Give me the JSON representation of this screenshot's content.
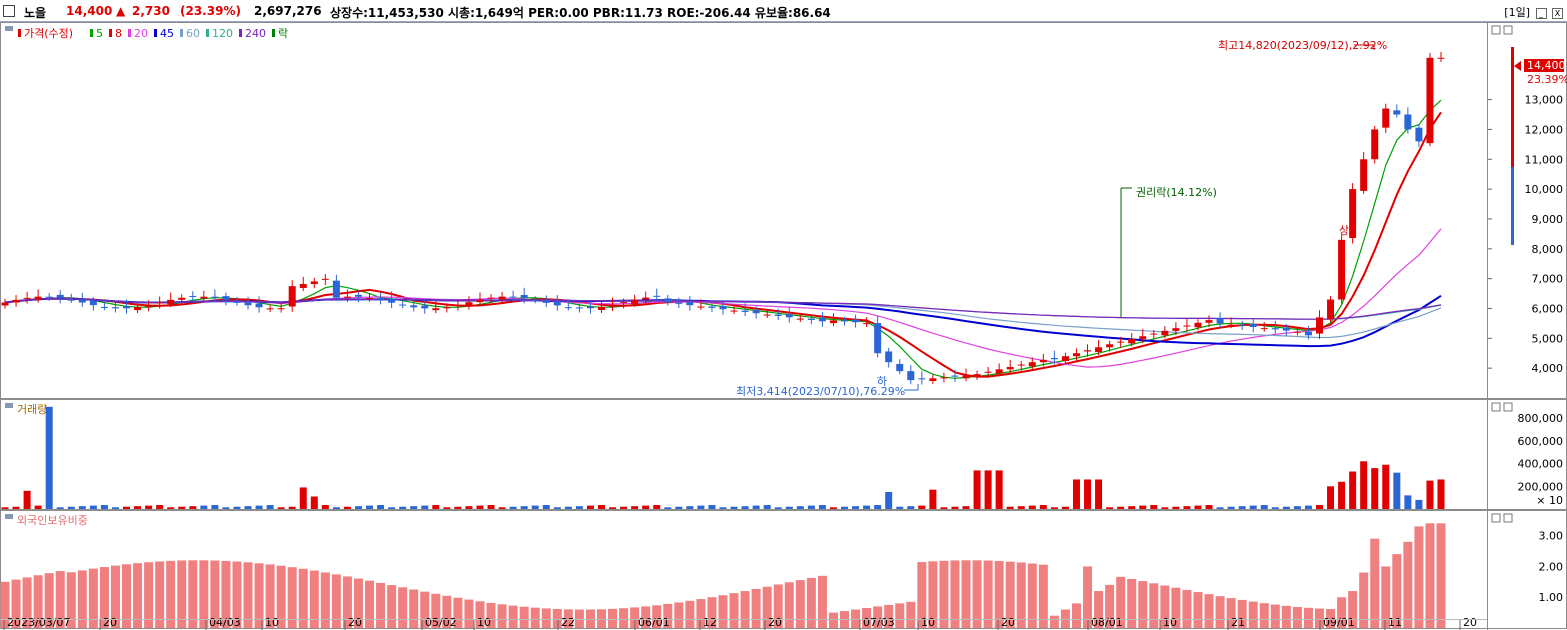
{
  "header": {
    "name": "노을",
    "price": "14,400",
    "change_arrow": "▲",
    "change": "2,730",
    "change_pct": "(23.39%)",
    "volume": "2,697,276",
    "stats": "상장수:11,453,530 시총:1,649억 PER:0.00 PBR:11.73 ROE:-206.44 유보율:86.64",
    "period": "[1일]",
    "min_btn": "_",
    "close_btn": "X"
  },
  "panels": {
    "price_legend": [
      {
        "label": "가격(수정)",
        "color": "#e00000"
      },
      {
        "label": "5",
        "color": "#00a000"
      },
      {
        "label": "8",
        "color": "#e00000"
      },
      {
        "label": "20",
        "color": "#e040e0"
      },
      {
        "label": "45",
        "color": "#0000d0"
      },
      {
        "label": "60",
        "color": "#7aa0c8"
      },
      {
        "label": "120",
        "color": "#30b090"
      },
      {
        "label": "240",
        "color": "#8020c0"
      },
      {
        "label": "락",
        "color": "#008000"
      }
    ],
    "volume_title": "거래량",
    "foreign_title": "외국인보유비중"
  },
  "annotations": {
    "high": "최고14,820(2023/09/12),2.92%",
    "low": "최저3,414(2023/07/10),76.29%",
    "rights": "권리락(14.12%)",
    "up_mark": "상",
    "down_mark": "하",
    "last_price": "14,400",
    "last_pct": "23.39%"
  },
  "chart_data": [
    {
      "type": "candlestick",
      "title": "가격(수정)",
      "ylim": [
        3000,
        15600
      ],
      "y_ticks": [
        "4,000",
        "5,000",
        "6,000",
        "7,000",
        "8,000",
        "9,000",
        "10,000",
        "11,000",
        "12,000",
        "13,000"
      ],
      "x_labels": [
        "2023/03/07",
        "20",
        "04/03",
        "10",
        "20",
        "05/02",
        "10",
        "22",
        "06/01",
        "12",
        "20",
        "07/03",
        "10",
        "20",
        "08/01",
        "10",
        "21",
        "09/01",
        "11",
        "20"
      ],
      "high_marker": {
        "value": 14820,
        "date": "2023/09/12"
      },
      "low_marker": {
        "value": 3414,
        "date": "2023/07/10"
      },
      "last_close": 14400,
      "up_color": "#e00000",
      "down_color": "#2a66d6"
    },
    {
      "type": "bar",
      "title": "거래량",
      "unit": "× 10",
      "y_ticks": [
        "200,000",
        "400,000",
        "600,000",
        "800,000"
      ],
      "ylim": [
        0,
        960000
      ]
    },
    {
      "type": "bar",
      "title": "외국인보유비중",
      "y_ticks": [
        "1.00",
        "2.00",
        "3.00"
      ],
      "ylim": [
        0,
        3.8
      ]
    }
  ]
}
